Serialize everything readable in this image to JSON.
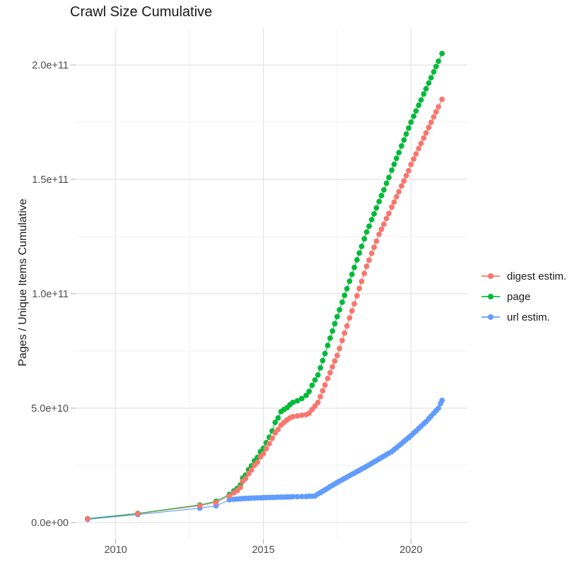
{
  "header": {
    "title": "Crawl Size Cumulative"
  },
  "legend": {
    "position": "right",
    "items": [
      {
        "label": "digest estim.",
        "color": "#F8766D"
      },
      {
        "label": "page",
        "color": "#00BA38"
      },
      {
        "label": "url estim.",
        "color": "#619CFF"
      }
    ]
  },
  "chart_data": {
    "type": "scatter",
    "title": "Crawl Size Cumulative",
    "xlabel": "",
    "ylabel": "Pages / Unique Items Cumulative",
    "values_unit": "billions of items (value 50 = 5.0e+10)",
    "grid": "major+minor",
    "legend_position": "right",
    "x_axis": {
      "range": [
        2008.45,
        2021.9
      ],
      "ticks": [
        {
          "value": 2010,
          "label": "2010"
        },
        {
          "value": 2015,
          "label": "2015"
        },
        {
          "value": 2020,
          "label": "2020"
        }
      ],
      "minor": [
        2012.5,
        2017.5
      ]
    },
    "y_axis": {
      "range": [
        -9,
        216
      ],
      "ticks": [
        {
          "value": 0,
          "label": "0.0e+00"
        },
        {
          "value": 50,
          "label": "5.0e+10"
        },
        {
          "value": 100,
          "label": "1.0e+11"
        },
        {
          "value": 150,
          "label": "1.5e+11"
        },
        {
          "value": 200,
          "label": "2.0e+11"
        }
      ],
      "minor": [
        25,
        75,
        125,
        175
      ]
    },
    "series": [
      {
        "name": "digest estim.",
        "color": "#F8766D",
        "points": [
          [
            2009.05,
            1.6
          ],
          [
            2010.75,
            3.9
          ],
          [
            2012.85,
            7.4
          ],
          [
            2013.4,
            8.8
          ],
          [
            2013.85,
            11.7
          ],
          [
            2014.0,
            13.0
          ],
          [
            2014.12,
            14.0
          ],
          [
            2014.22,
            15.4
          ],
          [
            2014.3,
            18.0
          ],
          [
            2014.4,
            19.3
          ],
          [
            2014.5,
            21.4
          ],
          [
            2014.6,
            23.0
          ],
          [
            2014.7,
            25.0
          ],
          [
            2014.8,
            26.4
          ],
          [
            2014.9,
            28.7
          ],
          [
            2015.0,
            30.1
          ],
          [
            2015.1,
            32.3
          ],
          [
            2015.2,
            34.5
          ],
          [
            2015.3,
            36.8
          ],
          [
            2015.4,
            39.2
          ],
          [
            2015.5,
            40.7
          ],
          [
            2015.6,
            42.6
          ],
          [
            2015.7,
            43.8
          ],
          [
            2015.8,
            44.8
          ],
          [
            2015.9,
            45.7
          ],
          [
            2016.0,
            46.3
          ],
          [
            2016.15,
            46.6
          ],
          [
            2016.3,
            46.9
          ],
          [
            2016.45,
            47.2
          ],
          [
            2016.55,
            47.8
          ],
          [
            2016.65,
            49.4
          ],
          [
            2016.75,
            50.9
          ],
          [
            2016.85,
            52.5
          ],
          [
            2016.93,
            55.0
          ],
          [
            2017.01,
            57.6
          ],
          [
            2017.09,
            60.1
          ],
          [
            2017.18,
            63.0
          ],
          [
            2017.26,
            65.5
          ],
          [
            2017.34,
            68.1
          ],
          [
            2017.42,
            70.6
          ],
          [
            2017.5,
            73.0
          ],
          [
            2017.58,
            76.1
          ],
          [
            2017.67,
            79.6
          ],
          [
            2017.75,
            82.8
          ],
          [
            2017.83,
            85.9
          ],
          [
            2017.92,
            89.4
          ],
          [
            2018.0,
            92.5
          ],
          [
            2018.08,
            95.6
          ],
          [
            2018.17,
            99.1
          ],
          [
            2018.25,
            102.3
          ],
          [
            2018.33,
            105.4
          ],
          [
            2018.42,
            108.9
          ],
          [
            2018.5,
            112.0
          ],
          [
            2018.58,
            114.7
          ],
          [
            2018.67,
            117.7
          ],
          [
            2018.75,
            120.3
          ],
          [
            2018.83,
            123.0
          ],
          [
            2018.92,
            126.0
          ],
          [
            2019.0,
            128.2
          ],
          [
            2019.08,
            130.4
          ],
          [
            2019.17,
            132.9
          ],
          [
            2019.25,
            135.1
          ],
          [
            2019.35,
            137.9
          ],
          [
            2019.43,
            140.1
          ],
          [
            2019.51,
            142.4
          ],
          [
            2019.59,
            144.6
          ],
          [
            2019.68,
            147.1
          ],
          [
            2019.76,
            149.3
          ],
          [
            2019.84,
            151.6
          ],
          [
            2019.92,
            153.8
          ],
          [
            2020.0,
            156.5
          ],
          [
            2020.09,
            158.9
          ],
          [
            2020.17,
            161.1
          ],
          [
            2020.26,
            163.5
          ],
          [
            2020.34,
            165.7
          ],
          [
            2020.43,
            168.1
          ],
          [
            2020.51,
            170.3
          ],
          [
            2020.6,
            172.7
          ],
          [
            2020.68,
            174.9
          ],
          [
            2020.77,
            177.3
          ],
          [
            2020.85,
            179.5
          ],
          [
            2020.93,
            181.7
          ],
          [
            2021.05,
            185.0
          ]
        ]
      },
      {
        "name": "page",
        "color": "#00BA38",
        "points": [
          [
            2009.05,
            1.7
          ],
          [
            2010.75,
            4.0
          ],
          [
            2012.85,
            7.7
          ],
          [
            2013.4,
            9.3
          ],
          [
            2013.85,
            12.3
          ],
          [
            2014.0,
            13.8
          ],
          [
            2014.12,
            14.9
          ],
          [
            2014.22,
            16.4
          ],
          [
            2014.3,
            19.4
          ],
          [
            2014.4,
            20.8
          ],
          [
            2014.5,
            23.1
          ],
          [
            2014.6,
            24.8
          ],
          [
            2014.7,
            27.0
          ],
          [
            2014.8,
            28.5
          ],
          [
            2014.9,
            31.0
          ],
          [
            2015.0,
            32.5
          ],
          [
            2015.1,
            34.9
          ],
          [
            2015.2,
            37.3
          ],
          [
            2015.3,
            40.0
          ],
          [
            2015.4,
            43.8
          ],
          [
            2015.5,
            45.7
          ],
          [
            2015.6,
            48.5
          ],
          [
            2015.7,
            49.4
          ],
          [
            2015.8,
            50.2
          ],
          [
            2015.9,
            51.5
          ],
          [
            2016.0,
            52.5
          ],
          [
            2016.15,
            53.2
          ],
          [
            2016.3,
            54.2
          ],
          [
            2016.45,
            55.6
          ],
          [
            2016.55,
            57.3
          ],
          [
            2016.65,
            60.0
          ],
          [
            2016.75,
            62.3
          ],
          [
            2016.85,
            64.5
          ],
          [
            2016.93,
            67.6
          ],
          [
            2017.01,
            70.8
          ],
          [
            2017.09,
            73.9
          ],
          [
            2017.18,
            77.4
          ],
          [
            2017.26,
            80.6
          ],
          [
            2017.34,
            83.7
          ],
          [
            2017.42,
            86.9
          ],
          [
            2017.5,
            90.0
          ],
          [
            2017.58,
            93.0
          ],
          [
            2017.67,
            96.3
          ],
          [
            2017.75,
            99.3
          ],
          [
            2017.83,
            102.2
          ],
          [
            2017.92,
            105.5
          ],
          [
            2018.0,
            108.5
          ],
          [
            2018.08,
            111.5
          ],
          [
            2018.17,
            114.8
          ],
          [
            2018.25,
            117.8
          ],
          [
            2018.33,
            120.7
          ],
          [
            2018.42,
            124.0
          ],
          [
            2018.5,
            127.0
          ],
          [
            2018.58,
            129.5
          ],
          [
            2018.67,
            132.4
          ],
          [
            2018.75,
            134.9
          ],
          [
            2018.83,
            137.5
          ],
          [
            2018.92,
            140.3
          ],
          [
            2019.0,
            142.9
          ],
          [
            2019.08,
            145.4
          ],
          [
            2019.17,
            148.3
          ],
          [
            2019.25,
            150.8
          ],
          [
            2019.35,
            154.0
          ],
          [
            2019.43,
            156.6
          ],
          [
            2019.51,
            159.2
          ],
          [
            2019.59,
            161.7
          ],
          [
            2019.68,
            164.6
          ],
          [
            2019.76,
            167.2
          ],
          [
            2019.84,
            169.8
          ],
          [
            2019.92,
            172.4
          ],
          [
            2020.0,
            175.0
          ],
          [
            2020.09,
            177.6
          ],
          [
            2020.17,
            179.9
          ],
          [
            2020.26,
            182.4
          ],
          [
            2020.34,
            184.7
          ],
          [
            2020.43,
            187.3
          ],
          [
            2020.51,
            189.6
          ],
          [
            2020.6,
            192.1
          ],
          [
            2020.68,
            194.4
          ],
          [
            2020.77,
            197.0
          ],
          [
            2020.85,
            199.3
          ],
          [
            2020.93,
            201.6
          ],
          [
            2021.05,
            205.0
          ]
        ]
      },
      {
        "name": "url estim.",
        "color": "#619CFF",
        "points": [
          [
            2009.05,
            1.4
          ],
          [
            2010.75,
            3.5
          ],
          [
            2012.85,
            6.3
          ],
          [
            2013.4,
            7.3
          ],
          [
            2013.85,
            9.9
          ],
          [
            2014.0,
            10.2
          ],
          [
            2014.12,
            10.3
          ],
          [
            2014.22,
            10.4
          ],
          [
            2014.3,
            10.5
          ],
          [
            2014.4,
            10.6
          ],
          [
            2014.5,
            10.6
          ],
          [
            2014.6,
            10.7
          ],
          [
            2014.7,
            10.7
          ],
          [
            2014.8,
            10.8
          ],
          [
            2014.9,
            10.8
          ],
          [
            2015.0,
            10.9
          ],
          [
            2015.1,
            10.9
          ],
          [
            2015.2,
            11.0
          ],
          [
            2015.3,
            11.0
          ],
          [
            2015.4,
            11.0
          ],
          [
            2015.5,
            11.1
          ],
          [
            2015.6,
            11.1
          ],
          [
            2015.7,
            11.1
          ],
          [
            2015.8,
            11.2
          ],
          [
            2015.9,
            11.2
          ],
          [
            2016.0,
            11.3
          ],
          [
            2016.15,
            11.3
          ],
          [
            2016.3,
            11.4
          ],
          [
            2016.45,
            11.4
          ],
          [
            2016.55,
            11.5
          ],
          [
            2016.65,
            11.5
          ],
          [
            2016.75,
            11.6
          ],
          [
            2016.85,
            12.5
          ],
          [
            2016.93,
            13.1
          ],
          [
            2017.01,
            13.7
          ],
          [
            2017.09,
            14.3
          ],
          [
            2017.18,
            15.0
          ],
          [
            2017.26,
            15.7
          ],
          [
            2017.34,
            16.3
          ],
          [
            2017.42,
            16.9
          ],
          [
            2017.5,
            17.5
          ],
          [
            2017.58,
            18.1
          ],
          [
            2017.67,
            18.7
          ],
          [
            2017.75,
            19.3
          ],
          [
            2017.83,
            19.8
          ],
          [
            2017.92,
            20.5
          ],
          [
            2018.0,
            21.1
          ],
          [
            2018.08,
            21.6
          ],
          [
            2018.17,
            22.3
          ],
          [
            2018.25,
            22.8
          ],
          [
            2018.33,
            23.4
          ],
          [
            2018.42,
            24.0
          ],
          [
            2018.5,
            24.6
          ],
          [
            2018.58,
            25.2
          ],
          [
            2018.67,
            25.9
          ],
          [
            2018.75,
            26.5
          ],
          [
            2018.83,
            27.1
          ],
          [
            2018.92,
            27.8
          ],
          [
            2019.0,
            28.4
          ],
          [
            2019.08,
            29.0
          ],
          [
            2019.17,
            29.7
          ],
          [
            2019.25,
            30.3
          ],
          [
            2019.35,
            31.0
          ],
          [
            2019.43,
            31.9
          ],
          [
            2019.51,
            32.7
          ],
          [
            2019.59,
            33.6
          ],
          [
            2019.68,
            34.5
          ],
          [
            2019.76,
            35.4
          ],
          [
            2019.84,
            36.3
          ],
          [
            2019.92,
            37.1
          ],
          [
            2020.0,
            38.0
          ],
          [
            2020.09,
            39.1
          ],
          [
            2020.17,
            40.0
          ],
          [
            2020.26,
            41.1
          ],
          [
            2020.34,
            42.1
          ],
          [
            2020.43,
            43.2
          ],
          [
            2020.51,
            44.1
          ],
          [
            2020.6,
            45.4
          ],
          [
            2020.68,
            46.5
          ],
          [
            2020.77,
            47.8
          ],
          [
            2020.85,
            48.9
          ],
          [
            2020.93,
            50.0
          ],
          [
            2021.0,
            52.0
          ],
          [
            2021.05,
            53.4
          ]
        ]
      }
    ]
  },
  "style": {
    "grid_major_color": "#E4E4E4",
    "grid_minor_color": "#F0F0F0",
    "tick_color": "#B3B3B3",
    "tick_label_color": "#4D4D4D",
    "text_color": "#1a1a1a",
    "background": "#FFFFFF"
  }
}
